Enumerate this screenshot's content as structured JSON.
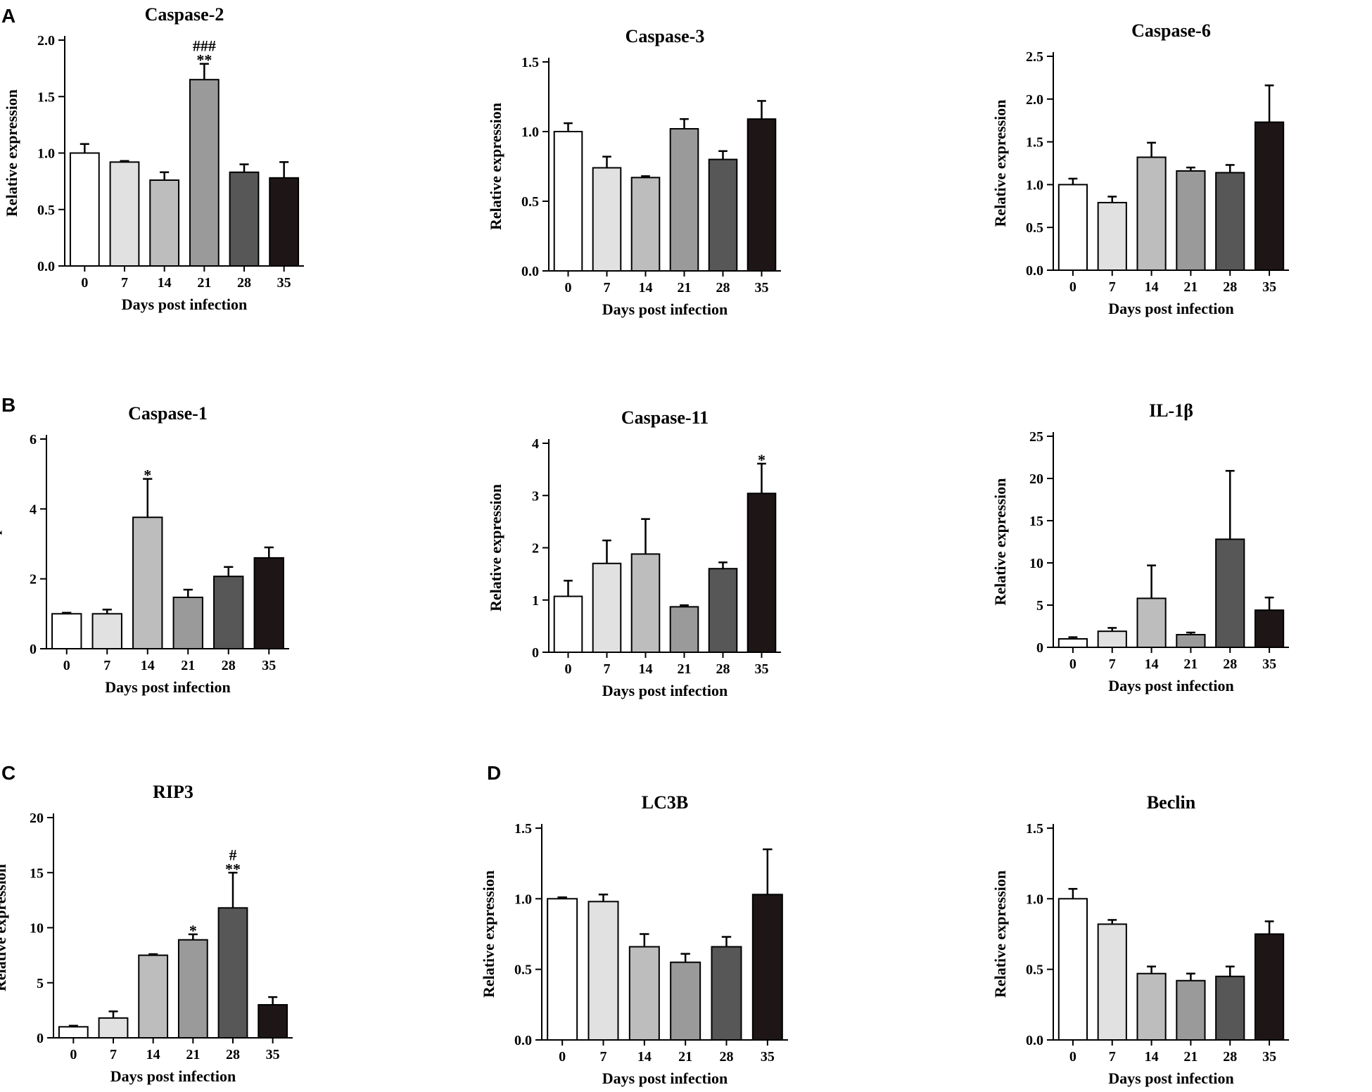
{
  "figure": {
    "panel_letters": [
      "A",
      "B",
      "C",
      "D"
    ],
    "colors": [
      "#ffffff",
      "#e1e1e1",
      "#bdbdbd",
      "#9a9a9a",
      "#575757",
      "#1e1616"
    ]
  },
  "chart_data": [
    {
      "type": "bar",
      "panel": "A",
      "title": "Caspase-2",
      "xlabel": "Days post infection",
      "ylabel": "Relative expression",
      "categories": [
        "0",
        "7",
        "14",
        "21",
        "28",
        "35"
      ],
      "values": [
        1.0,
        0.92,
        0.76,
        1.65,
        0.83,
        0.78
      ],
      "errors": [
        0.08,
        0.01,
        0.07,
        0.14,
        0.07,
        0.14
      ],
      "ylim": [
        0,
        2.0
      ],
      "yticks": [
        0.0,
        0.5,
        1.0,
        1.5,
        2.0
      ],
      "ytick_labels": [
        "0.0",
        "0.5",
        "1.0",
        "1.5",
        "2.0"
      ],
      "annotations": [
        {
          "category": "21",
          "lines": [
            "###",
            "**"
          ]
        }
      ],
      "grid": false
    },
    {
      "type": "bar",
      "panel": "",
      "title": "Caspase-3",
      "xlabel": "Days post infection",
      "ylabel": "Relative expression",
      "categories": [
        "0",
        "7",
        "14",
        "21",
        "28",
        "35"
      ],
      "values": [
        1.0,
        0.74,
        0.67,
        1.02,
        0.8,
        1.09
      ],
      "errors": [
        0.06,
        0.08,
        0.01,
        0.07,
        0.06,
        0.13
      ],
      "ylim": [
        0,
        1.5
      ],
      "yticks": [
        0.0,
        0.5,
        1.0,
        1.5
      ],
      "ytick_labels": [
        "0.0",
        "0.5",
        "1.0",
        "1.5"
      ],
      "annotations": [],
      "grid": false
    },
    {
      "type": "bar",
      "panel": "",
      "title": "Caspase-6",
      "xlabel": "Days post infection",
      "ylabel": "Relative expression",
      "categories": [
        "0",
        "7",
        "14",
        "21",
        "28",
        "35"
      ],
      "values": [
        1.0,
        0.79,
        1.32,
        1.16,
        1.14,
        1.73
      ],
      "errors": [
        0.07,
        0.07,
        0.17,
        0.04,
        0.09,
        0.43
      ],
      "ylim": [
        0,
        2.5
      ],
      "yticks": [
        0.0,
        0.5,
        1.0,
        1.5,
        2.0,
        2.5
      ],
      "ytick_labels": [
        "0.0",
        "0.5",
        "1.0",
        "1.5",
        "2.0",
        "2.5"
      ],
      "annotations": [],
      "grid": false
    },
    {
      "type": "bar",
      "panel": "B",
      "title": "Caspase-1",
      "xlabel": "Days post infection",
      "ylabel": "Relative expression",
      "categories": [
        "0",
        "7",
        "14",
        "21",
        "28",
        "35"
      ],
      "values": [
        1.0,
        1.0,
        3.76,
        1.47,
        2.07,
        2.6
      ],
      "errors": [
        0.03,
        0.12,
        1.1,
        0.22,
        0.27,
        0.3
      ],
      "ylim": [
        0,
        6
      ],
      "yticks": [
        0,
        2,
        4,
        6
      ],
      "ytick_labels": [
        "0",
        "2",
        "4",
        "6"
      ],
      "annotations": [
        {
          "category": "14",
          "lines": [
            "*"
          ]
        }
      ],
      "grid": false
    },
    {
      "type": "bar",
      "panel": "",
      "title": "Caspase-11",
      "xlabel": "Days post infection",
      "ylabel": "Relative expression",
      "categories": [
        "0",
        "7",
        "14",
        "21",
        "28",
        "35"
      ],
      "values": [
        1.07,
        1.7,
        1.88,
        0.87,
        1.6,
        3.04
      ],
      "errors": [
        0.3,
        0.44,
        0.67,
        0.03,
        0.12,
        0.57
      ],
      "ylim": [
        0,
        4
      ],
      "yticks": [
        0,
        1,
        2,
        3,
        4
      ],
      "ytick_labels": [
        "0",
        "1",
        "2",
        "3",
        "4"
      ],
      "annotations": [
        {
          "category": "35",
          "lines": [
            "*"
          ]
        }
      ],
      "grid": false
    },
    {
      "type": "bar",
      "panel": "",
      "title": "IL-1β",
      "xlabel": "Days post infection",
      "ylabel": "Relative expression",
      "categories": [
        "0",
        "7",
        "14",
        "21",
        "28",
        "35"
      ],
      "values": [
        1.0,
        1.9,
        5.8,
        1.5,
        12.8,
        4.4
      ],
      "errors": [
        0.2,
        0.4,
        3.9,
        0.25,
        8.1,
        1.5
      ],
      "ylim": [
        0,
        25
      ],
      "yticks": [
        0,
        5,
        10,
        15,
        20,
        25
      ],
      "ytick_labels": [
        "0",
        "5",
        "10",
        "15",
        "20",
        "25"
      ],
      "annotations": [],
      "grid": false
    },
    {
      "type": "bar",
      "panel": "C",
      "title": "RIP3",
      "xlabel": "Days post infection",
      "ylabel": "Relative expression",
      "categories": [
        "0",
        "7",
        "14",
        "21",
        "28",
        "35"
      ],
      "values": [
        1.0,
        1.8,
        7.5,
        8.9,
        11.8,
        3.0
      ],
      "errors": [
        0.1,
        0.6,
        0.1,
        0.5,
        3.2,
        0.7
      ],
      "ylim": [
        0,
        20
      ],
      "yticks": [
        0,
        5,
        10,
        15,
        20
      ],
      "ytick_labels": [
        "0",
        "5",
        "10",
        "15",
        "20"
      ],
      "annotations": [
        {
          "category": "21",
          "lines": [
            "*"
          ]
        },
        {
          "category": "28",
          "lines": [
            "#",
            "**"
          ]
        }
      ],
      "grid": false
    },
    {
      "type": "bar",
      "panel": "D",
      "title": "LC3B",
      "xlabel": "Days post infection",
      "ylabel": "Relative expression",
      "categories": [
        "0",
        "7",
        "14",
        "21",
        "28",
        "35"
      ],
      "values": [
        1.0,
        0.98,
        0.66,
        0.55,
        0.66,
        1.03
      ],
      "errors": [
        0.01,
        0.05,
        0.09,
        0.06,
        0.07,
        0.32
      ],
      "ylim": [
        0,
        1.5
      ],
      "yticks": [
        0.0,
        0.5,
        1.0,
        1.5
      ],
      "ytick_labels": [
        "0.0",
        "0.5",
        "1.0",
        "1.5"
      ],
      "annotations": [],
      "grid": false
    },
    {
      "type": "bar",
      "panel": "",
      "title": "Beclin",
      "xlabel": "Days post infection",
      "ylabel": "Relative expression",
      "categories": [
        "0",
        "7",
        "14",
        "21",
        "28",
        "35"
      ],
      "values": [
        1.0,
        0.82,
        0.47,
        0.42,
        0.45,
        0.75
      ],
      "errors": [
        0.07,
        0.03,
        0.05,
        0.05,
        0.07,
        0.09
      ],
      "ylim": [
        0,
        1.5
      ],
      "yticks": [
        0.0,
        0.5,
        1.0,
        1.5
      ],
      "ytick_labels": [
        "0.0",
        "0.5",
        "1.0",
        "1.5"
      ],
      "annotations": [],
      "grid": false
    }
  ]
}
